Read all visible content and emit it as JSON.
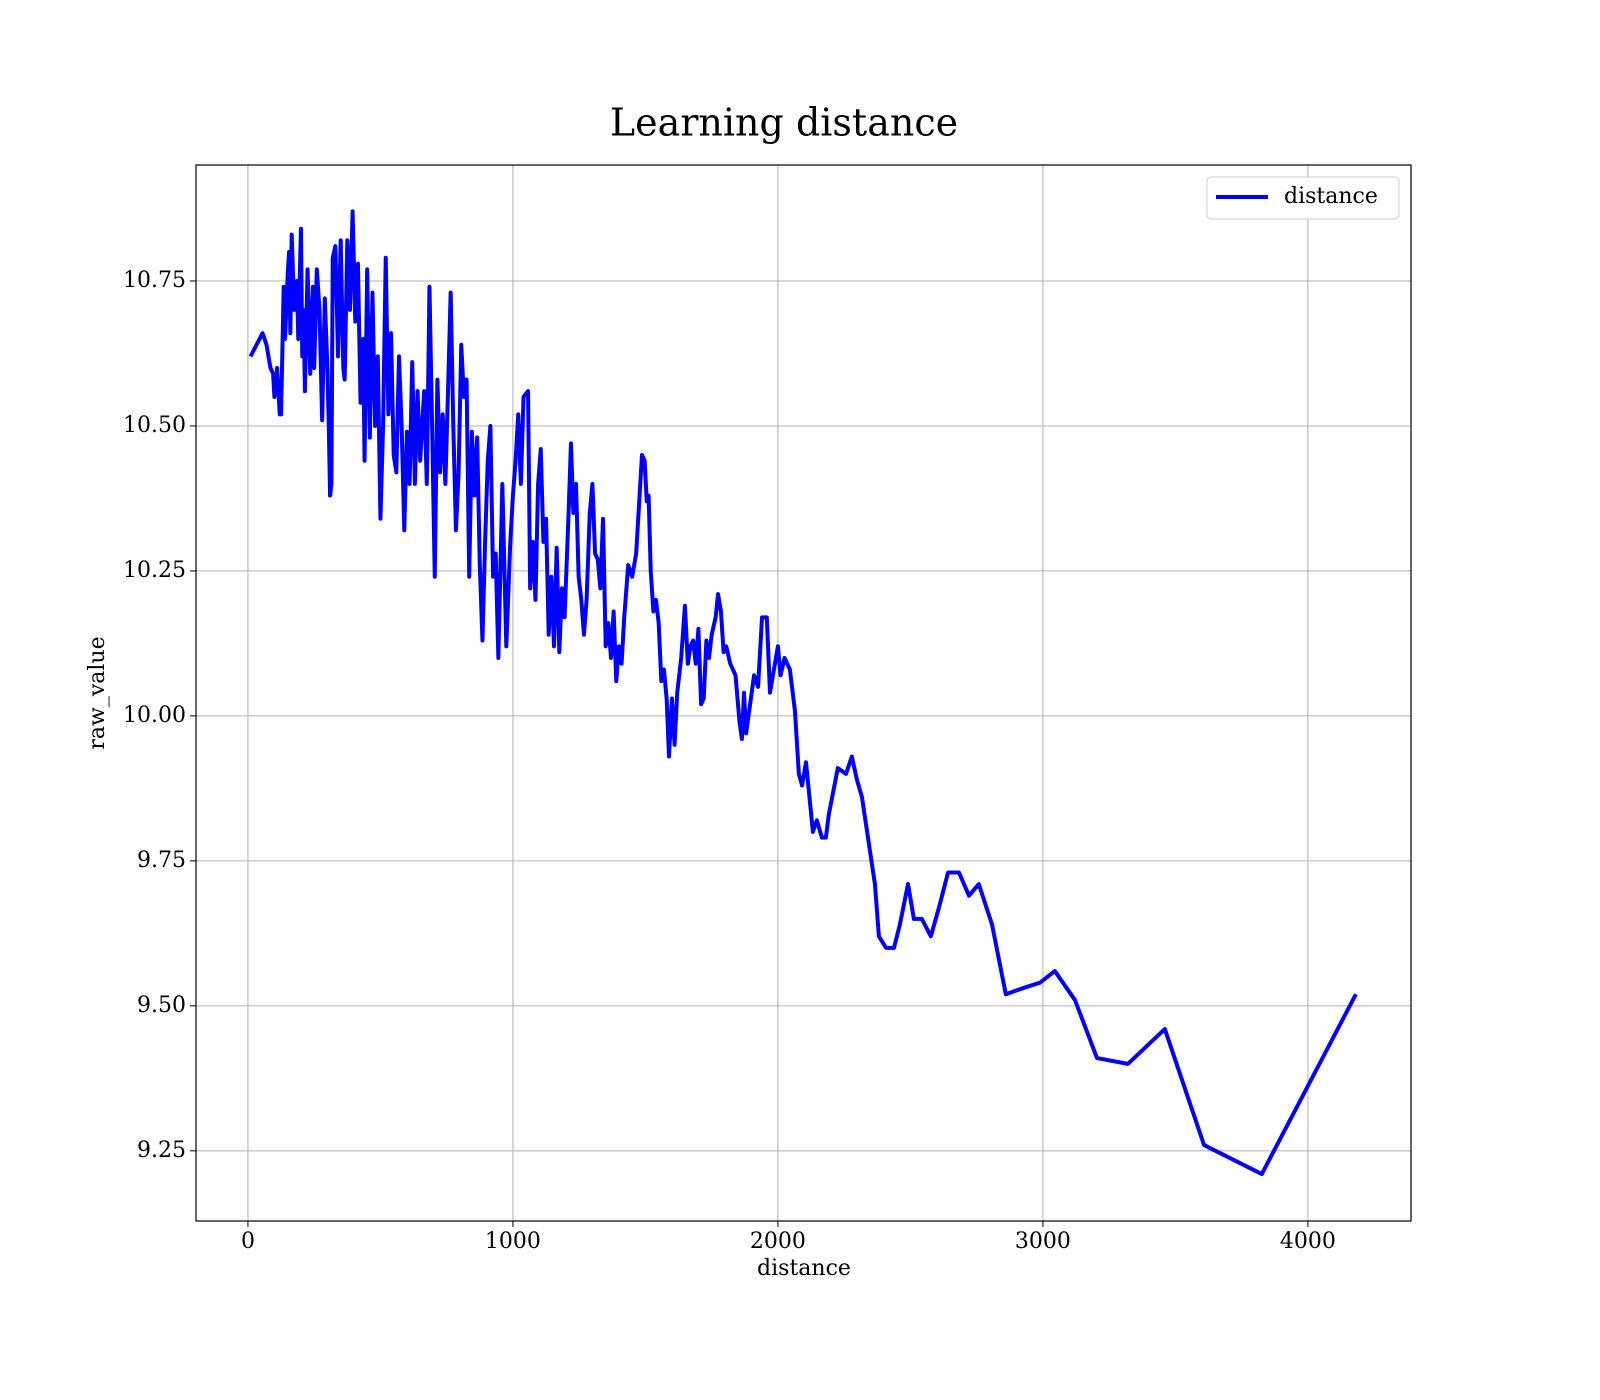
{
  "chart_data": {
    "type": "line",
    "title": "Learning distance",
    "x_label": "distance",
    "y_label": "raw_value",
    "xlim": [
      -196,
      4389
    ],
    "ylim": [
      9.129,
      10.95
    ],
    "xticks": [
      0,
      1000,
      2000,
      3000,
      4000
    ],
    "yticks": [
      {
        "value": 9.25,
        "label": "9.25"
      },
      {
        "value": 9.5,
        "label": "9.50"
      },
      {
        "value": 9.75,
        "label": "9.75"
      },
      {
        "value": 10,
        "label": "10.00"
      },
      {
        "value": 10.25,
        "label": "10.25"
      },
      {
        "value": 10.5,
        "label": "10.50"
      },
      {
        "value": 10.75,
        "label": "10.75"
      }
    ],
    "grid": true,
    "legend": "upper right",
    "x": [
      10,
      55,
      70,
      85,
      95,
      100,
      110,
      120,
      125,
      135,
      140,
      150,
      155,
      160,
      165,
      175,
      185,
      190,
      200,
      205,
      210,
      215,
      225,
      235,
      245,
      250,
      260,
      270,
      280,
      290,
      300,
      305,
      310,
      315,
      320,
      330,
      340,
      350,
      360,
      365,
      375,
      385,
      395,
      405,
      415,
      425,
      435,
      440,
      450,
      460,
      470,
      480,
      490,
      500,
      510,
      520,
      530,
      540,
      550,
      560,
      570,
      580,
      590,
      600,
      610,
      620,
      630,
      640,
      650,
      665,
      675,
      685,
      695,
      705,
      715,
      725,
      735,
      745,
      755,
      765,
      775,
      785,
      795,
      805,
      815,
      825,
      835,
      845,
      855,
      865,
      875,
      885,
      895,
      905,
      915,
      925,
      935,
      945,
      960,
      975,
      990,
      1000,
      1010,
      1020,
      1030,
      1040,
      1057,
      1065,
      1075,
      1085,
      1095,
      1105,
      1115,
      1125,
      1135,
      1145,
      1155,
      1165,
      1175,
      1185,
      1195,
      1210,
      1219,
      1228,
      1238,
      1248,
      1258,
      1268,
      1278,
      1290,
      1300,
      1310,
      1320,
      1330,
      1340,
      1350,
      1360,
      1370,
      1380,
      1390,
      1400,
      1410,
      1420,
      1435,
      1450,
      1465,
      1487,
      1497,
      1505,
      1512,
      1520,
      1530,
      1540,
      1550,
      1560,
      1570,
      1580,
      1589,
      1600,
      1610,
      1620,
      1635,
      1649,
      1660,
      1670,
      1680,
      1690,
      1700,
      1710,
      1720,
      1730,
      1740,
      1750,
      1765,
      1774,
      1785,
      1795,
      1805,
      1820,
      1840,
      1855,
      1864,
      1872,
      1880,
      1895,
      1910,
      1925,
      1940,
      1958,
      1970,
      1985,
      2000,
      2010,
      2025,
      2045,
      2064,
      2079,
      2091,
      2106,
      2132,
      2147,
      2166,
      2181,
      2192,
      2226,
      2257,
      2279,
      2298,
      2317,
      2366,
      2381,
      2408,
      2438,
      2460,
      2491,
      2513,
      2543,
      2577,
      2608,
      2642,
      2683,
      2721,
      2758,
      2808,
      2860,
      2921,
      2989,
      3045,
      3121,
      3204,
      3321,
      3460,
      3608,
      3826,
      4181
    ],
    "series": [
      {
        "name": "distance",
        "color": "#0000ff",
        "values": [
          10.62,
          10.66,
          10.64,
          10.6,
          10.59,
          10.55,
          10.6,
          10.52,
          10.52,
          10.74,
          10.65,
          10.76,
          10.8,
          10.66,
          10.83,
          10.7,
          10.75,
          10.65,
          10.84,
          10.62,
          10.7,
          10.56,
          10.77,
          10.59,
          10.74,
          10.6,
          10.77,
          10.7,
          10.51,
          10.72,
          10.6,
          10.5,
          10.38,
          10.4,
          10.79,
          10.81,
          10.62,
          10.82,
          10.6,
          10.58,
          10.82,
          10.7,
          10.87,
          10.68,
          10.78,
          10.54,
          10.65,
          10.44,
          10.77,
          10.48,
          10.73,
          10.5,
          10.62,
          10.34,
          10.5,
          10.79,
          10.52,
          10.66,
          10.45,
          10.42,
          10.62,
          10.5,
          10.32,
          10.49,
          10.4,
          10.61,
          10.4,
          10.56,
          10.44,
          10.56,
          10.4,
          10.74,
          10.5,
          10.24,
          10.58,
          10.42,
          10.52,
          10.4,
          10.56,
          10.73,
          10.5,
          10.32,
          10.42,
          10.64,
          10.55,
          10.58,
          10.24,
          10.49,
          10.38,
          10.48,
          10.26,
          10.13,
          10.3,
          10.44,
          10.5,
          10.24,
          10.28,
          10.1,
          10.4,
          10.12,
          10.3,
          10.38,
          10.44,
          10.52,
          10.4,
          10.55,
          10.56,
          10.22,
          10.3,
          10.2,
          10.4,
          10.46,
          10.3,
          10.34,
          10.14,
          10.24,
          10.12,
          10.29,
          10.11,
          10.22,
          10.17,
          10.35,
          10.47,
          10.35,
          10.4,
          10.24,
          10.2,
          10.14,
          10.2,
          10.35,
          10.4,
          10.28,
          10.27,
          10.22,
          10.34,
          10.12,
          10.16,
          10.1,
          10.18,
          10.06,
          10.12,
          10.09,
          10.17,
          10.26,
          10.24,
          10.28,
          10.45,
          10.44,
          10.37,
          10.38,
          10.25,
          10.18,
          10.2,
          10.16,
          10.06,
          10.08,
          10.03,
          9.93,
          10.03,
          9.95,
          10.04,
          10.1,
          10.19,
          10.09,
          10.12,
          10.13,
          10.09,
          10.15,
          10.02,
          10.03,
          10.13,
          10.1,
          10.14,
          10.17,
          10.21,
          10.18,
          10.11,
          10.12,
          10.09,
          10.07,
          9.99,
          9.96,
          10.04,
          9.97,
          10.02,
          10.07,
          10.05,
          10.17,
          10.17,
          10.04,
          10.08,
          10.12,
          10.07,
          10.1,
          10.08,
          10.01,
          9.9,
          9.88,
          9.92,
          9.8,
          9.82,
          9.79,
          9.79,
          9.83,
          9.91,
          9.9,
          9.93,
          9.89,
          9.86,
          9.71,
          9.62,
          9.6,
          9.6,
          9.64,
          9.71,
          9.65,
          9.65,
          9.62,
          9.67,
          9.73,
          9.73,
          9.69,
          9.71,
          9.64,
          9.52,
          9.53,
          9.54,
          9.56,
          9.51,
          9.41,
          9.4,
          9.46,
          9.26,
          9.21,
          9.52
        ]
      }
    ]
  }
}
